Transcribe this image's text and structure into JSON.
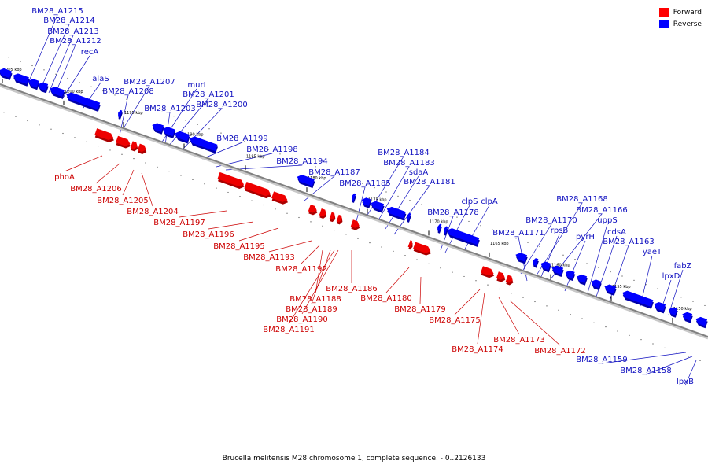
{
  "legend": {
    "forward_label": "Forward",
    "reverse_label": "Reverse",
    "forward_color": "#ff0000",
    "reverse_color": "#0000ff"
  },
  "caption": "Brucella melitensis M28 chromosome 1, complete sequence. - 0..2126133",
  "colors": {
    "forward_fill": "#ee0000",
    "forward_shade": "#aa0000",
    "reverse_fill": "#0000ff",
    "reverse_shade": "#0000aa",
    "forward_text": "#cc0000",
    "reverse_text": "#1010c0",
    "axis": "#808080"
  },
  "ticks": [
    "1205 kbp",
    "1200 kbp",
    "1195 kbp",
    "1190 kbp",
    "1185 kbp",
    "1180 kbp",
    "1175 kbp",
    "1170 kbp",
    "1165 kbp",
    "1160 kbp",
    "1155 kbp",
    "1150 kbp"
  ],
  "reverse_labels": [
    "BM28_A1215",
    "BM28_A1214",
    "BM28_A1213",
    "BM28_A1212",
    "recA",
    "alaS",
    "BM28_A1207",
    "BM28_A1208",
    "murI",
    "BM28_A1201",
    "BM28_A1203",
    "BM28_A1200",
    "BM28_A1199",
    "BM28_A1198",
    "BM28_A1194",
    "BM28_A1184",
    "BM28_A1183",
    "BM28_A1187",
    "sdaA",
    "BM28_A1185",
    "BM28_A1181",
    "BM28_A1178",
    "clpS",
    "clpA",
    "BM28_A1168",
    "BM28_A1166",
    "BM28_A1170",
    "rpsB",
    "uppS",
    "BM28_A1171",
    "pyrH",
    "cdsA",
    "BM28_A1163",
    "yaeT",
    "fabZ",
    "lpxD",
    "BM28_A1159",
    "BM28_A1158",
    "lpxB"
  ],
  "forward_labels": [
    "phoA",
    "BM28_A1206",
    "BM28_A1205",
    "BM28_A1204",
    "BM28_A1197",
    "BM28_A1196",
    "BM28_A1195",
    "BM28_A1193",
    "BM28_A1192",
    "BM28_A1186",
    "BM28_A1188",
    "BM28_A1180",
    "BM28_A1189",
    "BM28_A1179",
    "BM28_A1190",
    "BM28_A1175",
    "BM28_A1191",
    "BM28_A1173",
    "BM28_A1174",
    "BM28_A1172"
  ]
}
